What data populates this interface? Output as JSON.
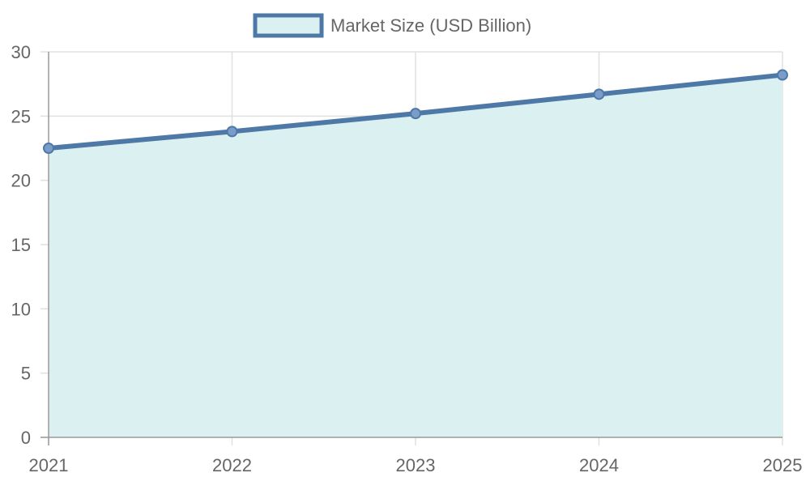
{
  "chart_data": {
    "type": "area",
    "x": [
      "2021",
      "2022",
      "2023",
      "2024",
      "2025"
    ],
    "series": [
      {
        "name": "Market Size (USD Billion)",
        "values": [
          22.5,
          23.8,
          25.2,
          26.7,
          28.2
        ]
      }
    ],
    "ylim": [
      0,
      30
    ],
    "yticks": [
      0,
      5,
      10,
      15,
      20,
      25,
      30
    ],
    "grid": true,
    "legend_position": "top-center",
    "colors": {
      "line": "#4e79a7",
      "fill": "#daf0f1",
      "point": "#7a9cc8",
      "grid": "#e0e0e0",
      "axis": "#999999",
      "text": "#666666"
    }
  }
}
